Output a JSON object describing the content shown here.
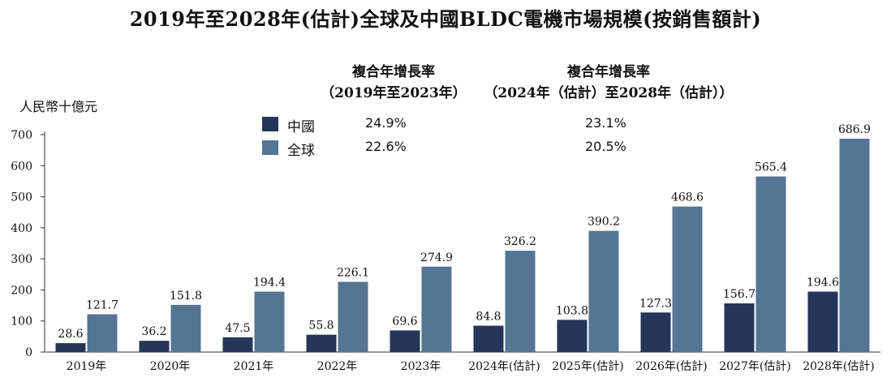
{
  "title": "2019年至2028年(估計)全球及中國BLDC電機市場規模(按銷售額計)",
  "unit_label": "人民幣十億元",
  "cagr_headers": [
    {
      "line1": "複合年增長率",
      "line2": "（2019年至2023年）"
    },
    {
      "line1": "複合年增長率",
      "line2": "（2024年（估計）至2028年（估計））"
    }
  ],
  "legend": [
    {
      "name": "中國",
      "color": "#253658",
      "cagr_1": "24.9%",
      "cagr_2": "23.1%"
    },
    {
      "name": "全球",
      "color": "#557594",
      "cagr_1": "22.6%",
      "cagr_2": "20.5%"
    }
  ],
  "colors": {
    "china": "#253658",
    "global": "#557594",
    "axis": "#333333"
  },
  "chart_data": {
    "type": "bar",
    "categories": [
      "2019年",
      "2020年",
      "2021年",
      "2022年",
      "2023年",
      "2024年(估計)",
      "2025年(估計)",
      "2026年(估計)",
      "2027年(估計)",
      "2028年(估計)"
    ],
    "series": [
      {
        "name": "中國",
        "values": [
          28.6,
          36.2,
          47.5,
          55.8,
          69.6,
          84.8,
          103.8,
          127.3,
          156.7,
          194.6
        ]
      },
      {
        "name": "全球",
        "values": [
          121.7,
          151.8,
          194.4,
          226.1,
          274.9,
          326.2,
          390.2,
          468.6,
          565.4,
          686.9
        ]
      }
    ],
    "value_labels": {
      "中國": [
        "28.6",
        "36.2",
        "47.5",
        "55.8",
        "69.6",
        "84.8",
        "103.8",
        "127.3",
        "156.7",
        "194.6"
      ],
      "全球": [
        "121.7",
        "151.8",
        "194.4",
        "226.1",
        "274.9",
        "326.2",
        "390.2",
        "468.6",
        "565.4",
        "686.9"
      ]
    },
    "yticks": [
      "0",
      "100",
      "200",
      "300",
      "400",
      "500",
      "600",
      "700"
    ],
    "ylim": [
      0,
      700
    ],
    "ylabel": "人民幣十億元",
    "grid": false,
    "legend_position": "top-center"
  }
}
